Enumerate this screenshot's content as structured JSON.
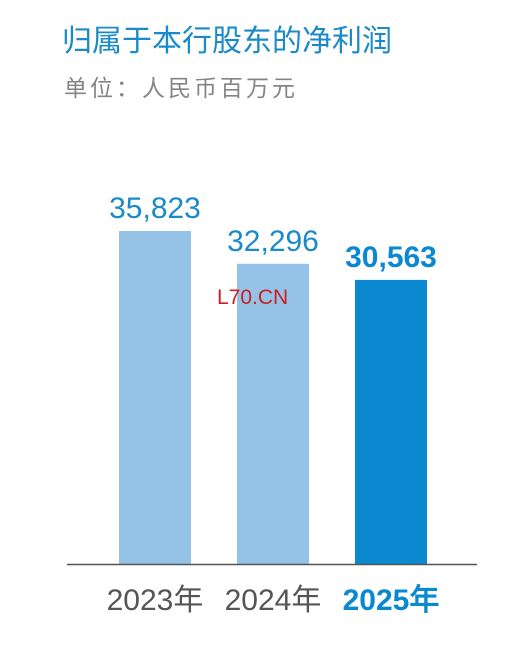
{
  "chart_data": {
    "type": "bar",
    "title": "归属于本行股东的净利润",
    "subtitle": "单位：人民币百万元",
    "categories": [
      "2023年",
      "2024年",
      "2025年"
    ],
    "values": [
      35823,
      32296,
      30563
    ],
    "value_labels": [
      "35,823",
      "32,296",
      "30,563"
    ],
    "highlight_index": 2,
    "ylim": [
      0,
      40000
    ],
    "grid": false,
    "colors": {
      "bar": "#95c3e8",
      "bar_highlight": "#0a88d0",
      "label": "#1a8ac8",
      "label_highlight": "#0a88d0",
      "tick": "#555555",
      "tick_highlight": "#0a88d0",
      "axis": "#555555"
    }
  },
  "watermark": "L70.CN"
}
